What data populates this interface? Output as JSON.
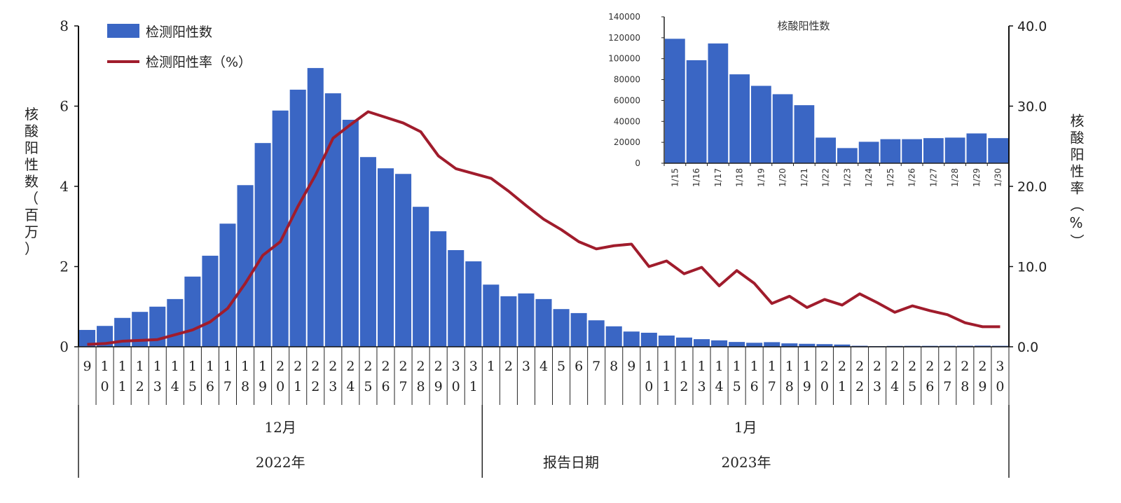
{
  "chart_data": [
    {
      "type": "bar+line",
      "legend": {
        "placement": "top-left",
        "bar_label": "检测阳性数",
        "line_label": "检测阳性率（%）"
      },
      "ylabel": "核酸阳性数（百万）",
      "y2label": "核酸阳性率（%）",
      "xlabel": "报告日期",
      "ylim": [
        0,
        8
      ],
      "y_ticks": [
        "0",
        "2",
        "4",
        "6",
        "8"
      ],
      "y2lim": [
        0,
        40
      ],
      "y2_ticks": [
        "0.0",
        "10.0",
        "20.0",
        "30.0",
        "40.0"
      ],
      "months": [
        {
          "label": "12月",
          "year": "2022年",
          "days": [
            "9",
            "10",
            "11",
            "12",
            "13",
            "14",
            "15",
            "16",
            "17",
            "18",
            "19",
            "20",
            "21",
            "22",
            "23",
            "24",
            "25",
            "26",
            "27",
            "28",
            "29",
            "30",
            "31"
          ]
        },
        {
          "label": "1月",
          "year": "2023年",
          "days": [
            "1",
            "2",
            "3",
            "4",
            "5",
            "6",
            "7",
            "8",
            "9",
            "10",
            "11",
            "12",
            "13",
            "14",
            "15",
            "16",
            "17",
            "18",
            "19",
            "20",
            "21",
            "22",
            "23",
            "24",
            "25",
            "26",
            "27",
            "28",
            "29",
            "30"
          ]
        }
      ],
      "series": [
        {
          "name": "检测阳性数",
          "type": "bar",
          "color": "#3a66c4",
          "values": [
            0.42,
            0.52,
            0.72,
            0.87,
            1.0,
            1.19,
            1.75,
            2.27,
            3.07,
            4.03,
            5.08,
            5.89,
            6.41,
            6.95,
            6.32,
            5.66,
            4.73,
            4.45,
            4.31,
            3.49,
            2.88,
            2.41,
            2.13,
            1.55,
            1.26,
            1.33,
            1.19,
            0.94,
            0.84,
            0.66,
            0.51,
            0.38,
            0.35,
            0.28,
            0.23,
            0.19,
            0.16,
            0.12,
            0.1,
            0.115,
            0.085,
            0.074,
            0.066,
            0.056,
            0.025,
            0.015,
            0.021,
            0.023,
            0.023,
            0.024,
            0.025,
            0.028,
            0.024
          ]
        },
        {
          "name": "检测阳性率（%）",
          "type": "line",
          "axis": "right",
          "color": "#a01c2c",
          "values": [
            0.3,
            0.4,
            0.7,
            0.8,
            0.9,
            1.5,
            2.1,
            3.1,
            4.8,
            7.9,
            11.4,
            13.1,
            17.5,
            21.4,
            26.0,
            27.7,
            29.3,
            28.6,
            27.9,
            26.8,
            23.8,
            22.2,
            21.6,
            21.0,
            19.4,
            17.6,
            15.9,
            14.6,
            13.1,
            12.2,
            12.6,
            12.8,
            10.0,
            10.7,
            9.1,
            9.9,
            7.6,
            9.5,
            7.9,
            5.4,
            6.3,
            4.9,
            5.9,
            5.2,
            6.6,
            5.5,
            4.3,
            5.1,
            4.5,
            4.0,
            3.0,
            2.5,
            2.5
          ]
        }
      ]
    },
    {
      "type": "bar",
      "title": "核酸阳性数",
      "categories": [
        "1/15",
        "1/16",
        "1/17",
        "1/18",
        "1/19",
        "1/20",
        "1/21",
        "1/22",
        "1/23",
        "1/24",
        "1/25",
        "1/26",
        "1/27",
        "1/28",
        "1/29",
        "1/30"
      ],
      "values": [
        119000,
        98500,
        114500,
        85000,
        74000,
        66000,
        55500,
        24500,
        14500,
        20500,
        23000,
        23000,
        24000,
        24500,
        28500,
        24000
      ],
      "ylim": [
        0,
        140000
      ],
      "y_ticks": [
        "0",
        "20000",
        "40000",
        "60000",
        "80000",
        "100000",
        "120000",
        "140000"
      ],
      "color": "#3a66c4"
    }
  ]
}
